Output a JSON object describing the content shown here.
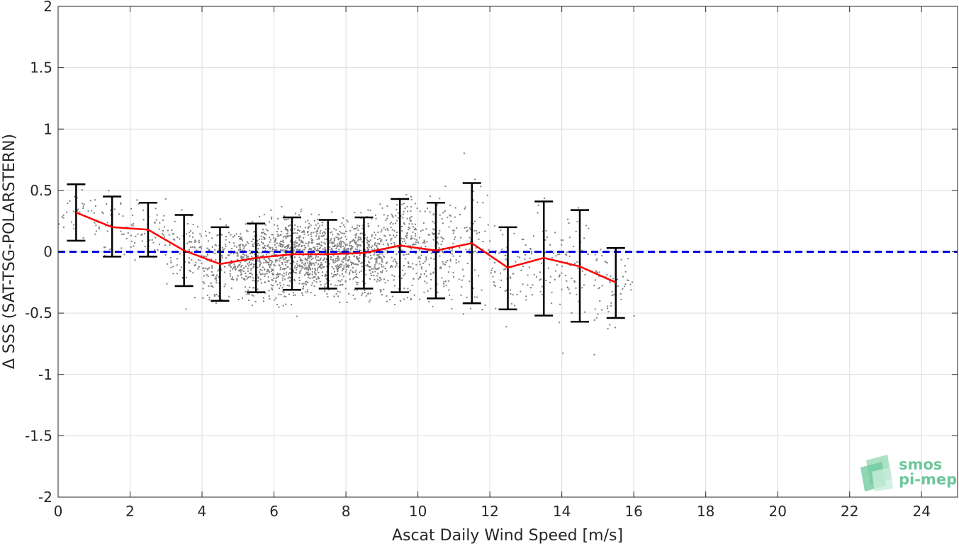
{
  "chart_data": {
    "type": "scatter",
    "xlabel": "Ascat Daily Wind Speed [m/s]",
    "ylabel": "Δ SSS (SAT-TSG-POLARSTERN)",
    "xlim": [
      0,
      25
    ],
    "ylim": [
      -2,
      2
    ],
    "x_ticks": [
      0,
      2,
      4,
      6,
      8,
      10,
      12,
      14,
      16,
      18,
      20,
      22,
      24
    ],
    "x_tick_labels": [
      "0",
      "2",
      "4",
      "6",
      "8",
      "10",
      "12",
      "14",
      "16",
      "18",
      "20",
      "22",
      "24"
    ],
    "y_ticks": [
      2,
      1.5,
      1,
      0.5,
      0,
      -0.5,
      -1,
      -1.5,
      -2
    ],
    "y_tick_labels": [
      "2",
      "1.5",
      "1",
      "0.5",
      "0",
      "-0.5",
      "-1",
      "-1.5",
      "-2"
    ],
    "grid": true,
    "reference_line": {
      "y": 0,
      "style": "dashed",
      "color": "#0000dd"
    },
    "scatter_color": "#808080",
    "scatter_density_note": "dense cloud concentrated between 5 and 10 m/s, spread roughly -1 to 1",
    "series": [
      {
        "type": "errorbar",
        "color": "#000000",
        "x": [
          0.5,
          1.5,
          2.5,
          3.5,
          4.5,
          5.5,
          6.5,
          7.5,
          8.5,
          9.5,
          10.5,
          11.5,
          12.5,
          13.5,
          14.5,
          15.5
        ],
        "upper": [
          0.55,
          0.45,
          0.4,
          0.3,
          0.2,
          0.23,
          0.28,
          0.26,
          0.28,
          0.43,
          0.4,
          0.56,
          0.2,
          0.41,
          0.34,
          0.03
        ],
        "lower": [
          0.09,
          -0.04,
          -0.04,
          -0.28,
          -0.4,
          -0.33,
          -0.31,
          -0.3,
          -0.3,
          -0.33,
          -0.38,
          -0.42,
          -0.47,
          -0.52,
          -0.57,
          -0.54
        ]
      },
      {
        "type": "line",
        "color": "#ff0000",
        "x": [
          0.5,
          1.5,
          2.5,
          3.5,
          4.5,
          5.5,
          6.5,
          7.5,
          8.5,
          9.5,
          10.5,
          11.5,
          12.5,
          13.5,
          14.5,
          15.5
        ],
        "values": [
          0.32,
          0.2,
          0.18,
          0.01,
          -0.1,
          -0.05,
          -0.02,
          -0.02,
          -0.01,
          0.05,
          0.01,
          0.07,
          -0.13,
          -0.05,
          -0.12,
          -0.25
        ]
      }
    ]
  },
  "logo": {
    "line1": "smos",
    "line2": "pi-mep",
    "color": "#6cc79a"
  }
}
